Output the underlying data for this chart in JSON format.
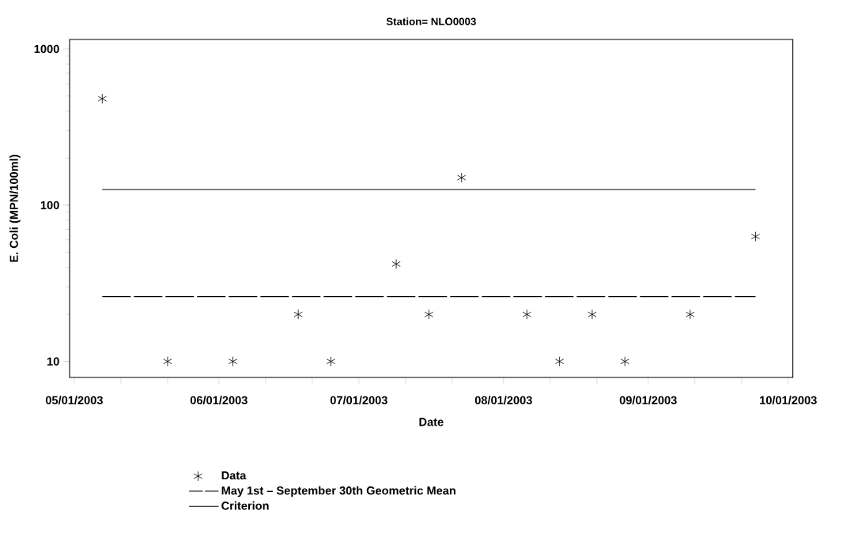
{
  "chart_data": {
    "type": "scatter",
    "title": "Station= NLO0003",
    "xlabel": "Date",
    "ylabel": "E. Coli (MPN/100ml)",
    "series": [
      {
        "name": "Data",
        "marker": "cross",
        "color": "#000000",
        "x": [
          "2003-05-07",
          "2003-05-21",
          "2003-06-04",
          "2003-06-18",
          "2003-06-25",
          "2003-07-09",
          "2003-07-16",
          "2003-07-23",
          "2003-08-06",
          "2003-08-13",
          "2003-08-20",
          "2003-08-27",
          "2003-09-10",
          "2003-09-24"
        ],
        "values": [
          480,
          10,
          10,
          20,
          10,
          42,
          20,
          150,
          20,
          10,
          20,
          10,
          20,
          63
        ]
      },
      {
        "name": "May 1st – September 30th Geometric Mean",
        "type": "line",
        "line_style": "dashed",
        "marker": "none",
        "color": "#000000",
        "x": [
          "2003-05-07",
          "2003-09-24"
        ],
        "values": [
          26,
          26
        ]
      },
      {
        "name": "Criterion",
        "type": "line",
        "line_style": "solid",
        "marker": "none",
        "color": "#000000",
        "x": [
          "2003-05-07",
          "2003-09-24"
        ],
        "values": [
          126,
          126
        ]
      }
    ],
    "xlim": [
      "2003-04-30",
      "2003-10-02"
    ],
    "xticks": [
      {
        "value": "2003-05-01",
        "label": "05/01/2003"
      },
      {
        "value": "2003-05-11",
        "label": null
      },
      {
        "value": "2003-05-21",
        "label": null
      },
      {
        "value": "2003-06-01",
        "label": "06/01/2003"
      },
      {
        "value": "2003-06-11",
        "label": null
      },
      {
        "value": "2003-06-21",
        "label": null
      },
      {
        "value": "2003-07-01",
        "label": "07/01/2003"
      },
      {
        "value": "2003-07-11",
        "label": null
      },
      {
        "value": "2003-07-21",
        "label": null
      },
      {
        "value": "2003-08-01",
        "label": "08/01/2003"
      },
      {
        "value": "2003-08-11",
        "label": null
      },
      {
        "value": "2003-08-21",
        "label": null
      },
      {
        "value": "2003-09-01",
        "label": "09/01/2003"
      },
      {
        "value": "2003-09-11",
        "label": null
      },
      {
        "value": "2003-09-21",
        "label": null
      },
      {
        "value": "2003-10-01",
        "label": "10/01/2003"
      }
    ],
    "ylim": [
      7.9,
      1150
    ],
    "yticks": [
      10,
      100,
      1000
    ],
    "log": true,
    "grid": false,
    "legend": "bottom"
  }
}
